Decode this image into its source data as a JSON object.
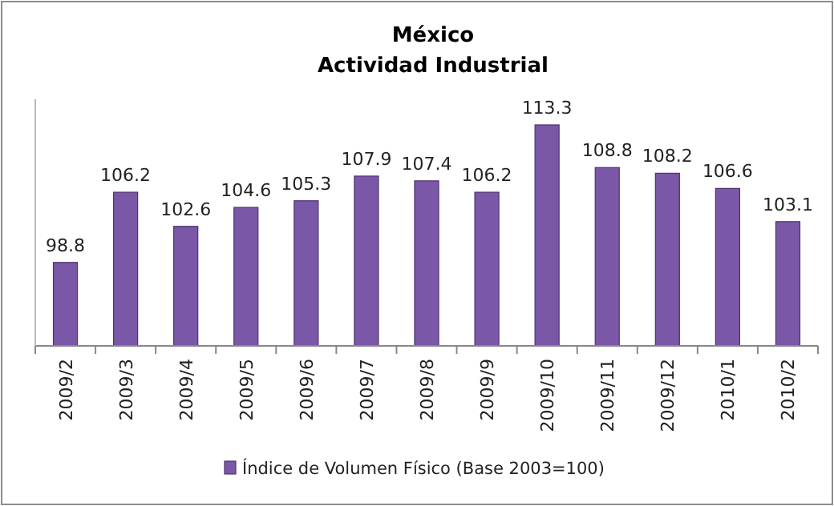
{
  "chart_data": {
    "type": "bar",
    "title": "México\nActividad Industrial",
    "categories": [
      "2009/2",
      "2009/3",
      "2009/4",
      "2009/5",
      "2009/6",
      "2009/7",
      "2009/8",
      "2009/9",
      "2009/10",
      "2009/11",
      "2009/12",
      "2010/1",
      "2010/2"
    ],
    "series": [
      {
        "name": "Índice de Volumen Físico (Base 2003=100)",
        "color": "#7b57a8",
        "values": [
          98.8,
          106.2,
          102.6,
          104.6,
          105.3,
          107.9,
          107.4,
          106.2,
          113.3,
          108.8,
          108.2,
          106.6,
          103.1
        ]
      }
    ],
    "ylim": [
      90,
      116
    ],
    "tick_labels": "x",
    "data_labels": true,
    "grid": false,
    "legend": "bottom"
  }
}
